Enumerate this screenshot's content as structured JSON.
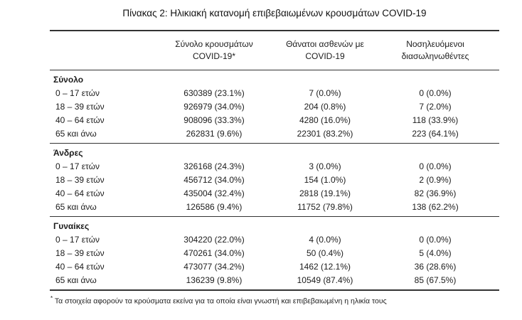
{
  "title": "Πίνακας 2: Ηλικιακή κατανομή επιβεβαιωμένων κρουσμάτων COVID-19",
  "table": {
    "columns": [
      {
        "line1": "Σύνολο κρουσμάτων",
        "line2": "COVID-19*"
      },
      {
        "line1": "Θάνατοι ασθενών με",
        "line2": "COVID-19"
      },
      {
        "line1": "Νοσηλευόμενοι",
        "line2": "διασωληνωθέντες"
      }
    ],
    "sections": [
      {
        "label": "Σύνολο",
        "rows": [
          {
            "age": "0 – 17 ετών",
            "cases": "630389 (23.1%)",
            "deaths": "7 (0.0%)",
            "intubated": "0 (0.0%)"
          },
          {
            "age": "18 – 39 ετών",
            "cases": "926979 (34.0%)",
            "deaths": "204 (0.8%)",
            "intubated": "7 (2.0%)"
          },
          {
            "age": "40 – 64 ετών",
            "cases": "908096 (33.3%)",
            "deaths": "4280 (16.0%)",
            "intubated": "118 (33.9%)"
          },
          {
            "age": "65 και άνω",
            "cases": "262831 (9.6%)",
            "deaths": "22301 (83.2%)",
            "intubated": "223 (64.1%)"
          }
        ]
      },
      {
        "label": "Άνδρες",
        "rows": [
          {
            "age": "0 – 17 ετών",
            "cases": "326168 (24.3%)",
            "deaths": "3 (0.0%)",
            "intubated": "0 (0.0%)"
          },
          {
            "age": "18 – 39 ετών",
            "cases": "456712 (34.0%)",
            "deaths": "154 (1.0%)",
            "intubated": "2 (0.9%)"
          },
          {
            "age": "40 – 64 ετών",
            "cases": "435004 (32.4%)",
            "deaths": "2818 (19.1%)",
            "intubated": "82 (36.9%)"
          },
          {
            "age": "65 και άνω",
            "cases": "126586 (9.4%)",
            "deaths": "11752 (79.8%)",
            "intubated": "138 (62.2%)"
          }
        ]
      },
      {
        "label": "Γυναίκες",
        "rows": [
          {
            "age": "0 – 17 ετών",
            "cases": "304220 (22.0%)",
            "deaths": "4 (0.0%)",
            "intubated": "0 (0.0%)"
          },
          {
            "age": "18 – 39 ετών",
            "cases": "470261 (34.0%)",
            "deaths": "50 (0.4%)",
            "intubated": "5 (4.0%)"
          },
          {
            "age": "40 – 64 ετών",
            "cases": "473077 (34.2%)",
            "deaths": "1462 (12.1%)",
            "intubated": "36 (28.6%)"
          },
          {
            "age": "65 και άνω",
            "cases": "136239 (9.8%)",
            "deaths": "10549 (87.4%)",
            "intubated": "85 (67.5%)"
          }
        ]
      }
    ]
  },
  "footnote": {
    "marker": "*",
    "text": "Τα στοιχεία αφορούν τα κρούσματα εκείνα για τα οποία είναι γνωστή και επιβεβαιωμένη η ηλικία τους"
  }
}
